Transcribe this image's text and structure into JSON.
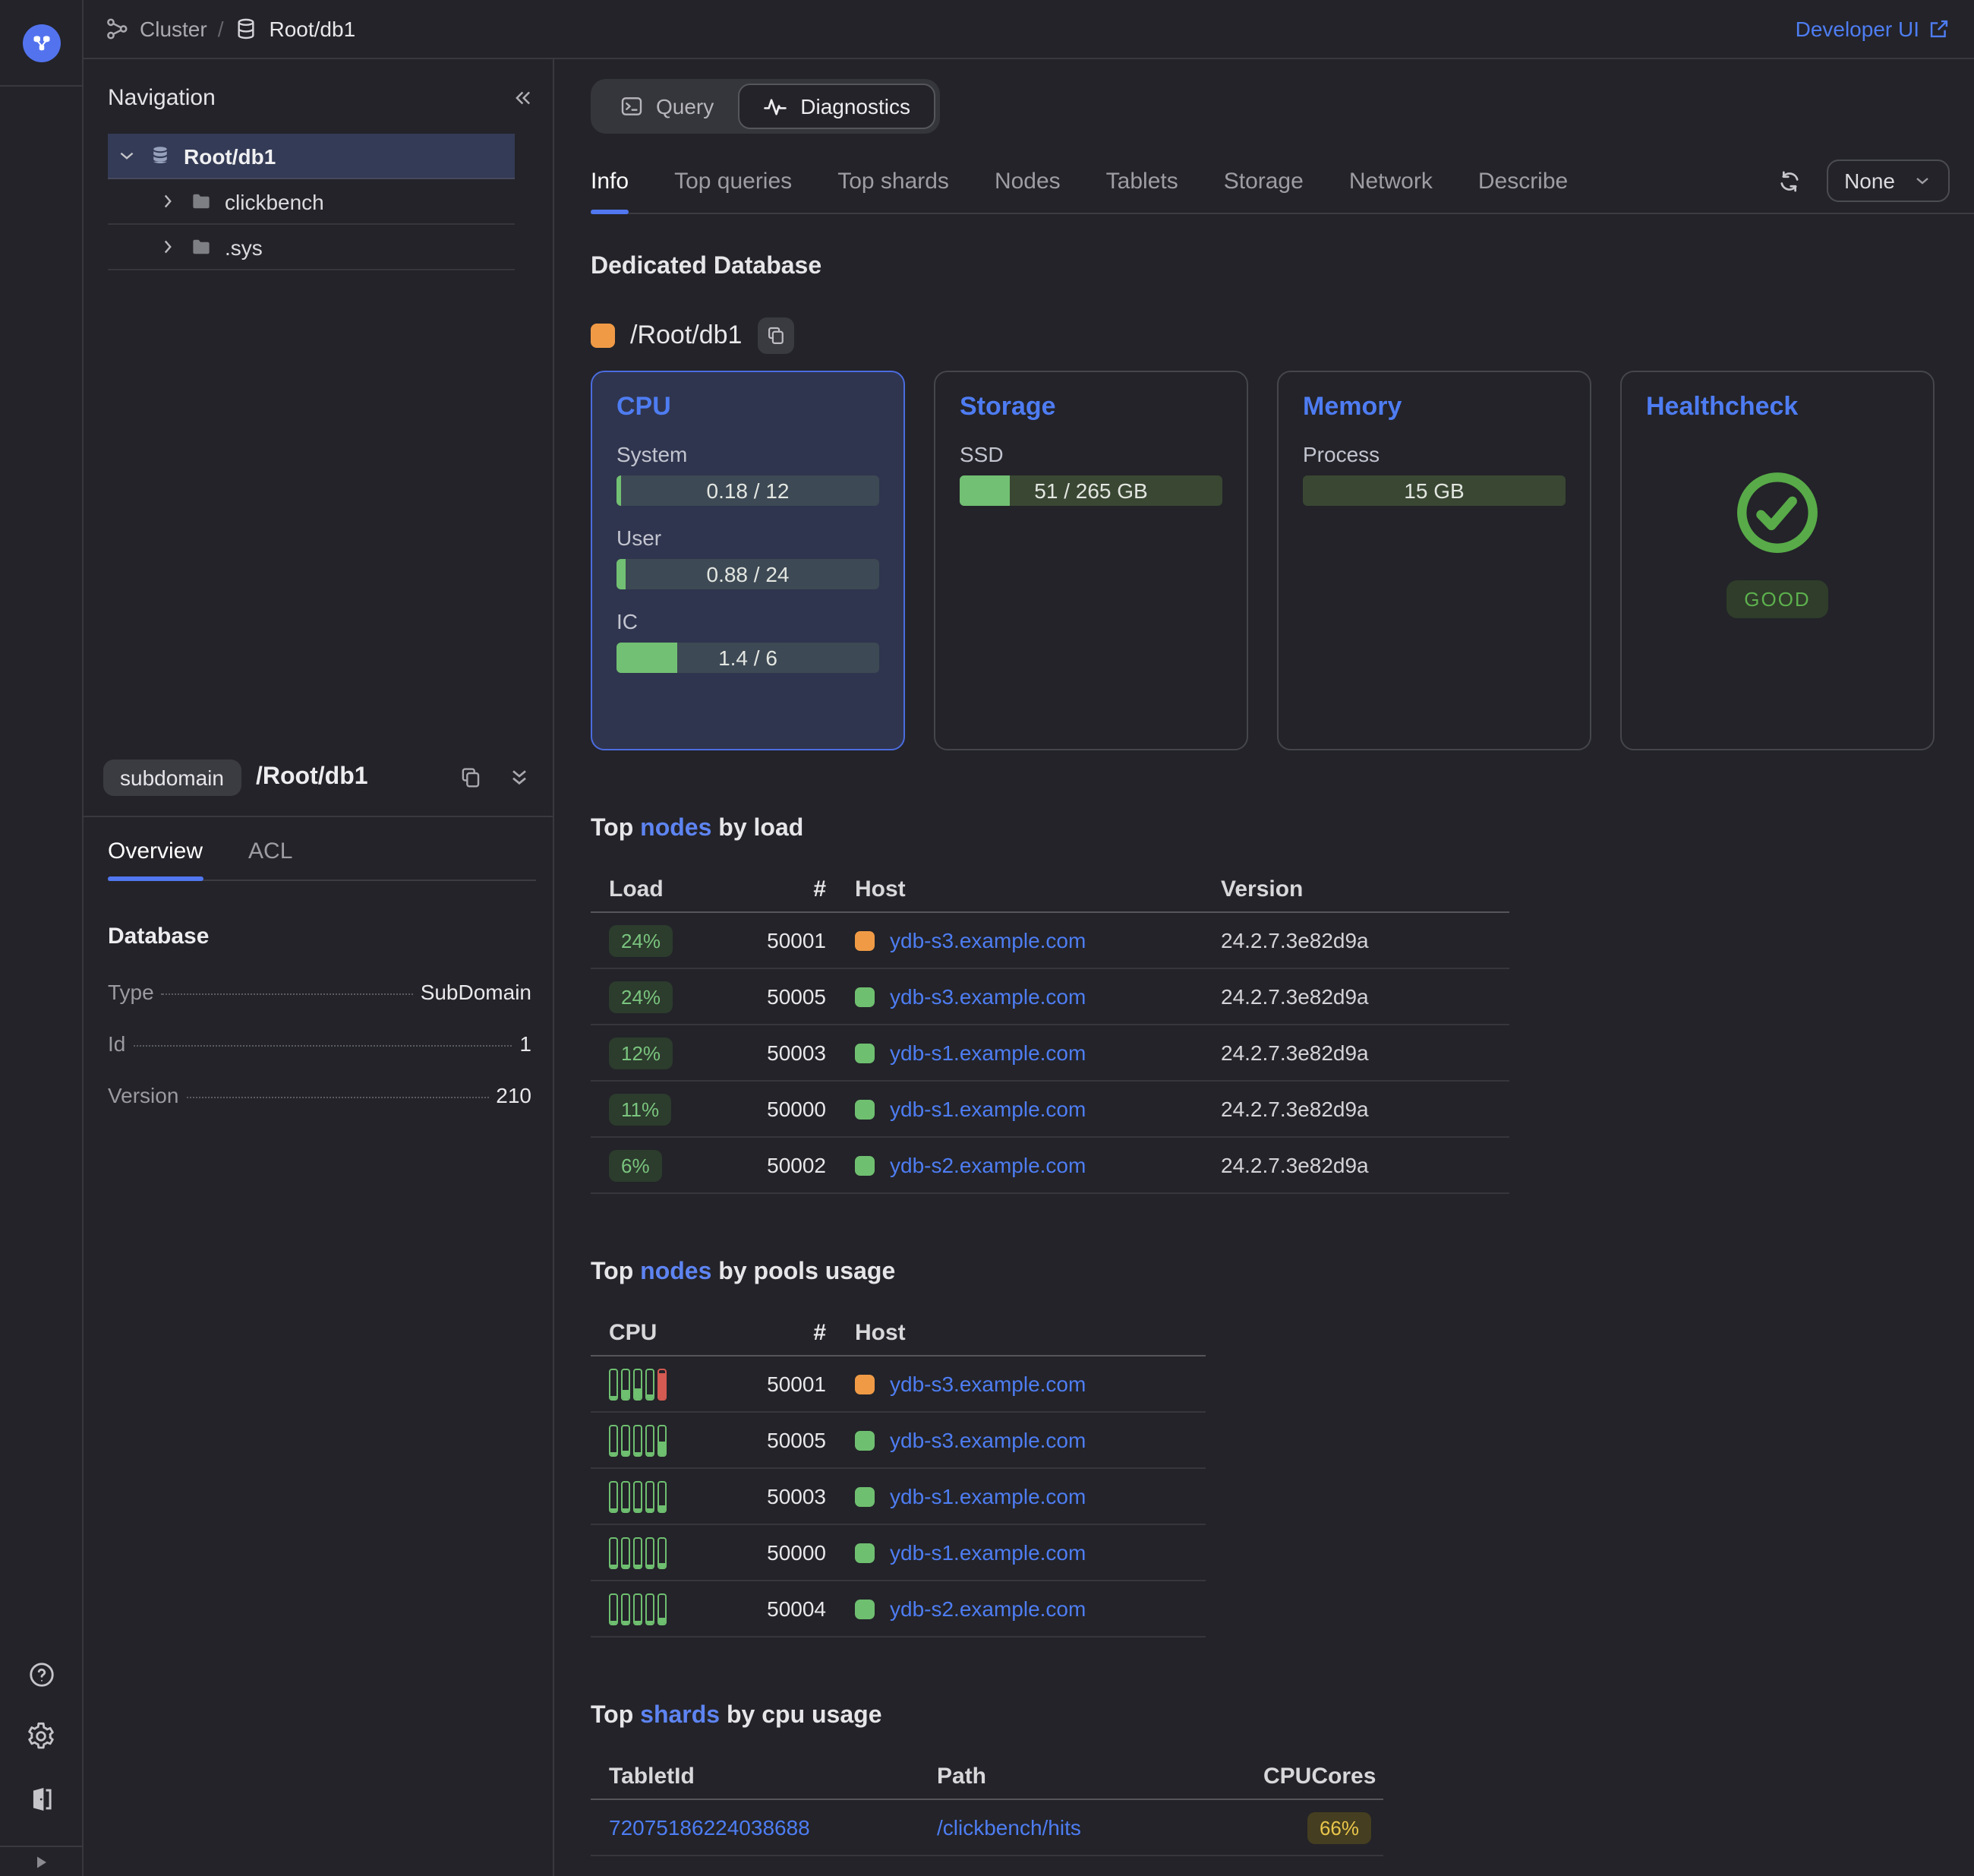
{
  "theme": {
    "accent_blue": "#4e7df2",
    "success_green": "#72c073",
    "danger_red": "#d45a52",
    "warning_yellow": "#e9c64b",
    "entity_orange": "#f09a46"
  },
  "topbar": {
    "breadcrumb": {
      "cluster": "Cluster",
      "separator": "/",
      "entity": "Root/db1"
    },
    "developer_ui": "Developer UI"
  },
  "sidebar": {
    "nav_title": "Navigation",
    "tree": [
      {
        "label": "Root/db1"
      },
      {
        "label": "clickbench"
      },
      {
        "label": ".sys"
      }
    ],
    "object_panel": {
      "badge": "subdomain",
      "title": "/Root/db1",
      "tabs": [
        {
          "label": "Overview"
        },
        {
          "label": "ACL"
        }
      ],
      "section": "Database",
      "fields": [
        {
          "label": "Type",
          "value": "SubDomain"
        },
        {
          "label": "Id",
          "value": "1"
        },
        {
          "label": "Version",
          "value": "210"
        }
      ]
    }
  },
  "main": {
    "modes": [
      {
        "label": "Query"
      },
      {
        "label": "Diagnostics"
      }
    ],
    "tabs": [
      {
        "label": "Info"
      },
      {
        "label": "Top queries"
      },
      {
        "label": "Top shards"
      },
      {
        "label": "Nodes"
      },
      {
        "label": "Tablets"
      },
      {
        "label": "Storage"
      },
      {
        "label": "Network"
      },
      {
        "label": "Describe"
      }
    ],
    "autorefresh": "None",
    "section_title": "Dedicated Database",
    "entity": {
      "name": "/Root/db1",
      "color": "#f09a46"
    },
    "cards": {
      "cpu": {
        "title": "CPU",
        "metrics": [
          {
            "label": "System",
            "value": "0.18 / 12",
            "fill": "1.5%"
          },
          {
            "label": "User",
            "value": "0.88 / 24",
            "fill": "3.7%"
          },
          {
            "label": "IC",
            "value": "1.4 / 6",
            "fill": "23%"
          }
        ]
      },
      "storage": {
        "title": "Storage",
        "metrics": [
          {
            "label": "SSD",
            "value": "51 / 265 GB",
            "fill": "19%"
          }
        ]
      },
      "memory": {
        "title": "Memory",
        "metrics": [
          {
            "label": "Process",
            "value": "15 GB",
            "fill": "0%"
          }
        ]
      },
      "healthcheck": {
        "title": "Healthcheck",
        "status": "GOOD"
      }
    },
    "top_nodes_load": {
      "title": {
        "pre": "Top ",
        "link": "nodes",
        "post": " by load"
      },
      "columns": [
        "Load",
        "#",
        "Host",
        "Version"
      ],
      "rows": [
        {
          "load": "24%",
          "id": "50001",
          "host": "ydb-s3.example.com",
          "host_color": "#f09a46",
          "version": "24.2.7.3e82d9a"
        },
        {
          "load": "24%",
          "id": "50005",
          "host": "ydb-s3.example.com",
          "host_color": "#6fbf70",
          "version": "24.2.7.3e82d9a"
        },
        {
          "load": "12%",
          "id": "50003",
          "host": "ydb-s1.example.com",
          "host_color": "#6fbf70",
          "version": "24.2.7.3e82d9a"
        },
        {
          "load": "11%",
          "id": "50000",
          "host": "ydb-s1.example.com",
          "host_color": "#6fbf70",
          "version": "24.2.7.3e82d9a"
        },
        {
          "load": "6%",
          "id": "50002",
          "host": "ydb-s2.example.com",
          "host_color": "#6fbf70",
          "version": "24.2.7.3e82d9a"
        }
      ]
    },
    "top_nodes_pools": {
      "title": {
        "pre": "Top ",
        "link": "nodes",
        "post": " by pools usage"
      },
      "columns": [
        "CPU",
        "#",
        "Host"
      ],
      "rows": [
        {
          "id": "50001",
          "host": "ydb-s3.example.com",
          "host_color": "#f09a46",
          "bars": [
            {
              "h": 6
            },
            {
              "h": 28
            },
            {
              "h": 33
            },
            {
              "h": 14
            },
            {
              "h": 88,
              "red": true
            }
          ]
        },
        {
          "id": "50005",
          "host": "ydb-s3.example.com",
          "host_color": "#6fbf70",
          "bars": [
            {
              "h": 10
            },
            {
              "h": 12
            },
            {
              "h": 10
            },
            {
              "h": 8
            },
            {
              "h": 45
            }
          ]
        },
        {
          "id": "50003",
          "host": "ydb-s1.example.com",
          "host_color": "#6fbf70",
          "bars": [
            {
              "h": 8
            },
            {
              "h": 10
            },
            {
              "h": 8
            },
            {
              "h": 6
            },
            {
              "h": 20
            }
          ]
        },
        {
          "id": "50000",
          "host": "ydb-s1.example.com",
          "host_color": "#6fbf70",
          "bars": [
            {
              "h": 8
            },
            {
              "h": 8
            },
            {
              "h": 8
            },
            {
              "h": 6
            },
            {
              "h": 14
            }
          ]
        },
        {
          "id": "50004",
          "host": "ydb-s2.example.com",
          "host_color": "#6fbf70",
          "bars": [
            {
              "h": 8
            },
            {
              "h": 10
            },
            {
              "h": 8
            },
            {
              "h": 6
            },
            {
              "h": 16
            }
          ]
        }
      ]
    },
    "top_shards": {
      "title": {
        "pre": "Top ",
        "link": "shards",
        "post": " by cpu usage"
      },
      "columns": [
        "TabletId",
        "Path",
        "CPUCores"
      ],
      "rows": [
        {
          "tablet_id": "72075186224038688",
          "path": "/clickbench/hits",
          "cpu": "66%"
        }
      ]
    }
  }
}
